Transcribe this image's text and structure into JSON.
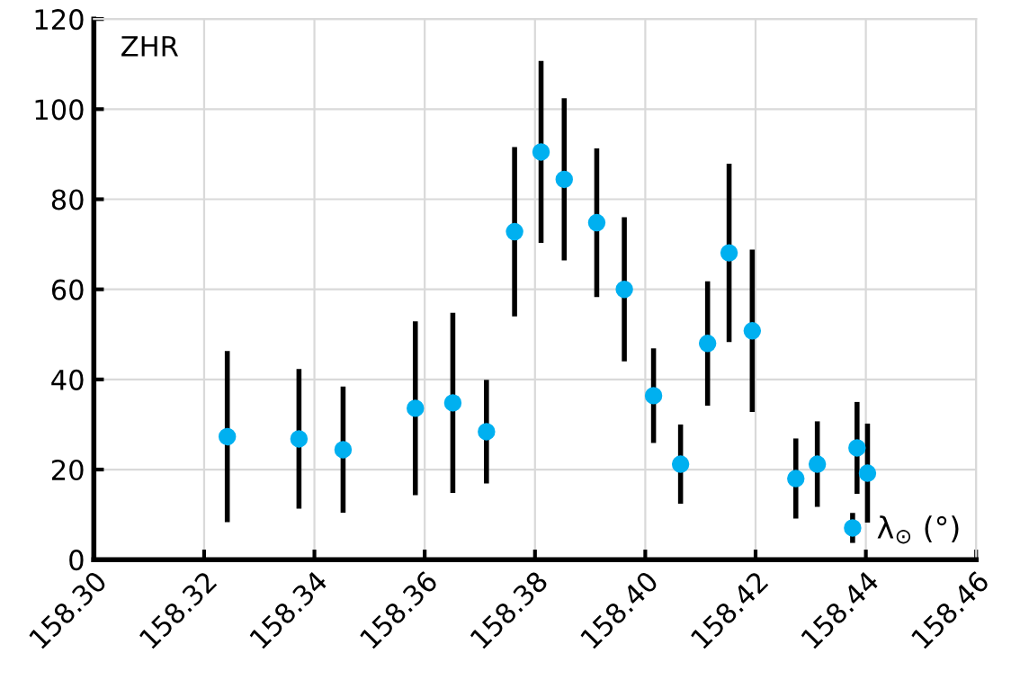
{
  "chart_data": {
    "type": "scatter",
    "ylabel": "ZHR",
    "series": [
      {
        "name": "λ$_{⊙}$ (°)",
        "color": "#00b0f0",
        "x": [
          158.3242,
          158.3372,
          158.3452,
          158.3583,
          158.3651,
          158.3712,
          158.3763,
          158.3811,
          158.3853,
          158.3912,
          158.3962,
          158.4015,
          158.4064,
          158.4113,
          158.4152,
          158.4194,
          158.4273,
          158.4312,
          158.4384,
          158.4403
        ],
        "values": [
          27.3,
          26.8,
          24.4,
          33.6,
          34.8,
          28.4,
          72.8,
          90.5,
          84.4,
          74.8,
          60,
          36.4,
          21.2,
          48,
          68.1,
          50.8,
          18,
          21.2,
          24.8,
          19.2
        ],
        "errors": [
          19,
          15.5,
          14,
          19.3,
          20,
          11.5,
          18.8,
          20.2,
          18,
          16.5,
          16,
          10.5,
          8.8,
          13.8,
          19.8,
          18,
          8.9,
          9.5,
          10.2,
          11
        ]
      }
    ],
    "xlim": [
      158.3,
      158.46
    ],
    "xticks": [
      {
        "value": 158.3,
        "label": "158.30"
      },
      158.32,
      158.34,
      158.36,
      158.38,
      {
        "value": 158.4,
        "label": "158.40"
      },
      158.42,
      158.44,
      158.46
    ],
    "ylim": [
      0,
      120
    ],
    "yticks": [
      0,
      20,
      40,
      60,
      80,
      100,
      120
    ],
    "grid": true,
    "legend": "bottom right",
    "marker": "circle"
  }
}
